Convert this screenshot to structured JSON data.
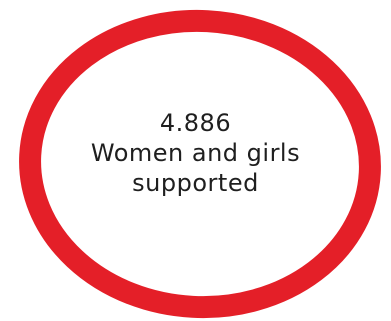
{
  "stat": {
    "value": "4.886",
    "line1": "Women and girls",
    "line2": "supported"
  },
  "colors": {
    "ring": "#e41f28",
    "background": "#ffffff",
    "text": "#1f1f1f"
  }
}
